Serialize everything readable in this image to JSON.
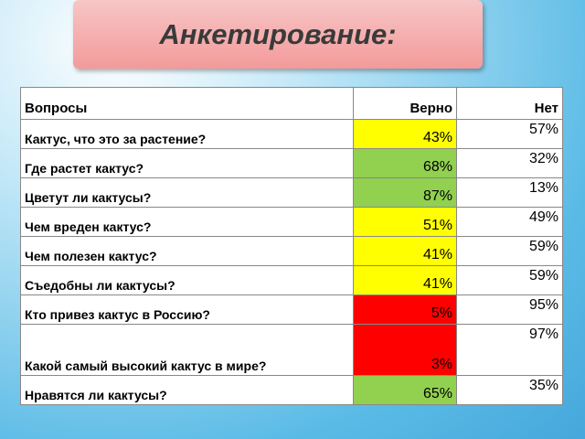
{
  "title": "Анкетирование:",
  "table": {
    "header": [
      "Вопросы",
      "Верно",
      "Нет"
    ],
    "rows": [
      {
        "question": "Кактус, что это за растение?",
        "yes": "43%",
        "no": "57%",
        "color": "#ffff00"
      },
      {
        "question": "Где растет кактус?",
        "yes": "68%",
        "no": "32%",
        "color": "#92d050"
      },
      {
        "question": "Цветут ли кактусы?",
        "yes": "87%",
        "no": "13%",
        "color": "#92d050"
      },
      {
        "question": "Чем вреден кактус?",
        "yes": "51%",
        "no": "49%",
        "color": "#ffff00"
      },
      {
        "question": "Чем полезен кактус?",
        "yes": "41%",
        "no": "59%",
        "color": "#ffff00"
      },
      {
        "question": "Съедобны ли кактусы?",
        "yes": "41%",
        "no": "59%",
        "color": "#ffff00"
      },
      {
        "question": "Кто привез кактус в Россию?",
        "yes": "5%",
        "no": "95%",
        "color": "#ff0000"
      },
      {
        "question": "Какой самый высокий кактус в мире?",
        "yes": "3%",
        "no": "97%",
        "color": "#ff0000"
      },
      {
        "question": "Нравятся ли кактусы?",
        "yes": "65%",
        "no": "35%",
        "color": "#92d050"
      }
    ]
  }
}
